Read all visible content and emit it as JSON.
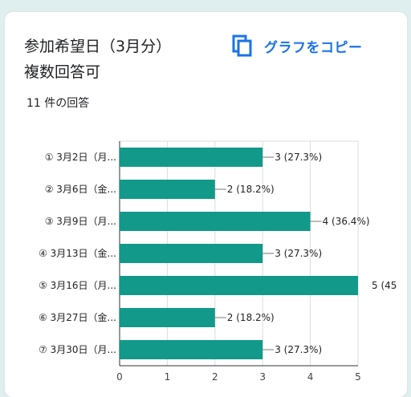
{
  "header": {
    "title_line1": "参加希望日（3月分）",
    "title_line2": "複数回答可",
    "copy_label": "グラフをコピー",
    "response_count": "11 件の回答"
  },
  "colors": {
    "bar": "#12998a",
    "accent": "#1a73e8"
  },
  "icons": {
    "copy": "copy-icon"
  },
  "chart_data": {
    "type": "bar",
    "orientation": "horizontal",
    "categories": [
      "① 3月2日（月...",
      "② 3月6日（金...",
      "③ 3月9日（月...",
      "④ 3月13日（金...",
      "⑤ 3月16日（月...",
      "⑥ 3月27日（金...",
      "⑦ 3月30日（月..."
    ],
    "values": [
      3,
      2,
      4,
      3,
      5,
      2,
      3
    ],
    "data_labels": [
      "3 (27.3%)",
      "2 (18.2%)",
      "4 (36.4%)",
      "3 (27.3%)",
      "5 (45",
      "2 (18.2%)",
      "3 (27.3%)"
    ],
    "xlim": [
      0,
      5
    ],
    "xticks": [
      "0",
      "1",
      "2",
      "3",
      "4",
      "5"
    ],
    "grid": true
  }
}
